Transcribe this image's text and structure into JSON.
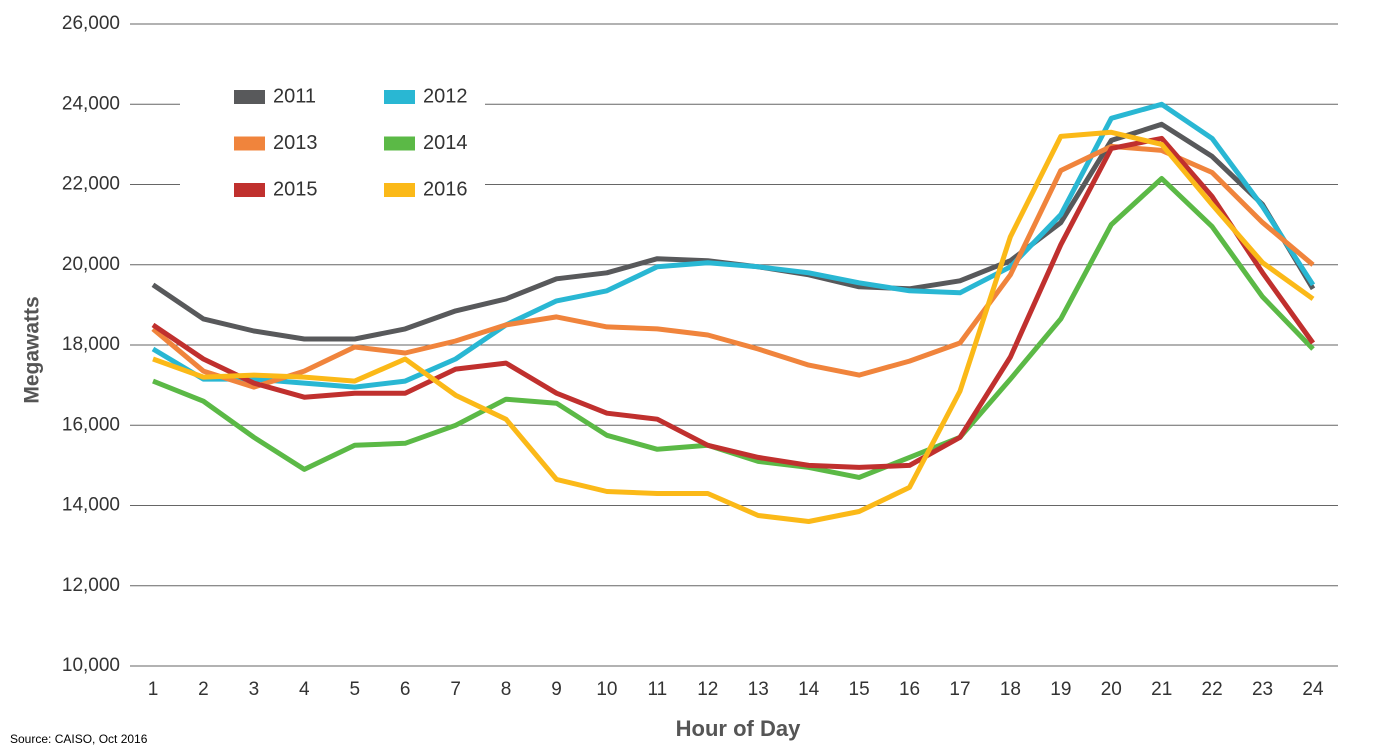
{
  "chart_data": {
    "type": "line",
    "x_label": "Hour of Day",
    "y_label": "Megawatts",
    "source": "Source: CAISO, Oct 2016",
    "x": [
      1,
      2,
      3,
      4,
      5,
      6,
      7,
      8,
      9,
      10,
      11,
      12,
      13,
      14,
      15,
      16,
      17,
      18,
      19,
      20,
      21,
      22,
      23,
      24
    ],
    "xlim": [
      1,
      24
    ],
    "xticks": [
      1,
      2,
      3,
      4,
      5,
      6,
      7,
      8,
      9,
      10,
      11,
      12,
      13,
      14,
      15,
      16,
      17,
      18,
      19,
      20,
      21,
      22,
      23,
      24
    ],
    "ylim": [
      10000,
      26000
    ],
    "yticks": [
      {
        "value": 10000,
        "label": "10,000"
      },
      {
        "value": 12000,
        "label": "12,000"
      },
      {
        "value": 14000,
        "label": "14,000"
      },
      {
        "value": 16000,
        "label": "16,000"
      },
      {
        "value": 18000,
        "label": "18,000"
      },
      {
        "value": 20000,
        "label": "20,000"
      },
      {
        "value": 22000,
        "label": "22,000"
      },
      {
        "value": 24000,
        "label": "24,000"
      },
      {
        "value": 26000,
        "label": "26,000"
      }
    ],
    "grid": true,
    "series": [
      {
        "name": "2011",
        "color": "#58595b",
        "values": [
          19500,
          18650,
          18350,
          18150,
          18150,
          18400,
          18850,
          19150,
          19650,
          19800,
          20150,
          20100,
          19950,
          19750,
          19450,
          19400,
          19600,
          20100,
          21050,
          23100,
          23500,
          22700,
          21500,
          19400
        ]
      },
      {
        "name": "2012",
        "color": "#29b7d3",
        "values": [
          17900,
          17150,
          17150,
          17050,
          16950,
          17100,
          17650,
          18500,
          19100,
          19350,
          19950,
          20050,
          19950,
          19800,
          19550,
          19350,
          19300,
          19950,
          21250,
          23650,
          24000,
          23150,
          21450,
          19500
        ]
      },
      {
        "name": "2013",
        "color": "#f0843c",
        "values": [
          18400,
          17350,
          16950,
          17350,
          17950,
          17800,
          18100,
          18500,
          18700,
          18450,
          18400,
          18250,
          17900,
          17500,
          17250,
          17600,
          18050,
          19750,
          22350,
          22950,
          22850,
          22300,
          21050,
          20000
        ]
      },
      {
        "name": "2014",
        "color": "#5bb946",
        "values": [
          17100,
          16600,
          15700,
          14900,
          15500,
          15550,
          16000,
          16650,
          16550,
          15750,
          15400,
          15500,
          15100,
          14950,
          14700,
          15200,
          15700,
          17150,
          18650,
          21000,
          22150,
          20950,
          19200,
          17900
        ]
      },
      {
        "name": "2015",
        "color": "#c0302e",
        "values": [
          18500,
          17650,
          17050,
          16700,
          16800,
          16800,
          17400,
          17550,
          16800,
          16300,
          16150,
          15500,
          15200,
          15000,
          14950,
          15000,
          15700,
          17700,
          20500,
          22900,
          23150,
          21700,
          19800,
          18050
        ]
      },
      {
        "name": "2016",
        "color": "#fbb918",
        "values": [
          17650,
          17200,
          17250,
          17200,
          17100,
          17650,
          16750,
          16150,
          14650,
          14350,
          14300,
          14300,
          13750,
          13600,
          13850,
          14450,
          16850,
          20700,
          23200,
          23300,
          23000,
          21500,
          20050,
          19150
        ]
      }
    ]
  }
}
